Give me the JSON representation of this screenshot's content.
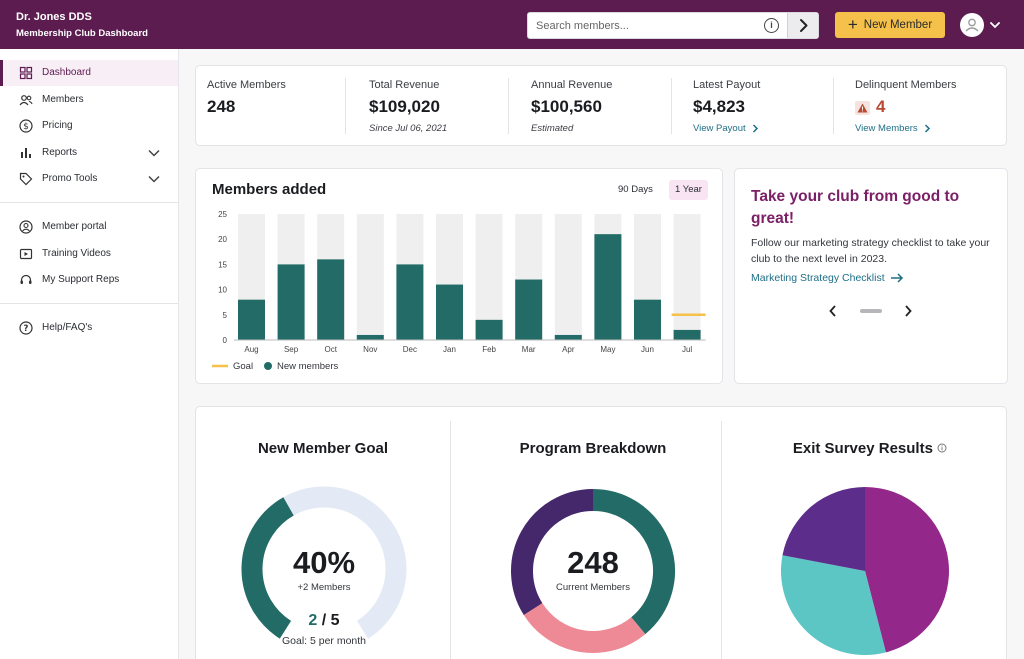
{
  "header": {
    "brand_name": "Dr. Jones DDS",
    "brand_subtitle": "Membership Club Dashboard",
    "search_placeholder": "Search members...",
    "new_member_label": "New Member",
    "icons": {
      "info": "info-icon",
      "go": "chevron-right-icon",
      "avatar": "user-avatar-icon",
      "menu": "chevron-down-icon"
    }
  },
  "sidebar": {
    "items": [
      {
        "label": "Dashboard",
        "icon": "dashboard-icon",
        "active": true
      },
      {
        "label": "Members",
        "icon": "users-icon"
      },
      {
        "label": "Pricing",
        "icon": "dollar-circle-icon"
      },
      {
        "label": "Reports",
        "icon": "bar-chart-icon",
        "expandable": true
      },
      {
        "label": "Promo Tools",
        "icon": "tag-icon",
        "expandable": true
      },
      {
        "label": "Member portal",
        "icon": "user-circle-icon"
      },
      {
        "label": "Training Videos",
        "icon": "video-icon"
      },
      {
        "label": "My Support Reps",
        "icon": "headset-icon"
      },
      {
        "label": "Help/FAQ's",
        "icon": "help-icon"
      }
    ]
  },
  "stats": {
    "active_members": {
      "label": "Active Members",
      "value": "248"
    },
    "total_revenue": {
      "label": "Total Revenue",
      "value": "$109,020",
      "sub": "Since Jul 06, 2021"
    },
    "annual_revenue": {
      "label": "Annual Revenue",
      "value": "$100,560",
      "sub": "Estimated"
    },
    "latest_payout": {
      "label": "Latest Payout",
      "value": "$4,823",
      "link": "View Payout"
    },
    "delinquent": {
      "label": "Delinquent Members",
      "value": "4",
      "link": "View Members"
    }
  },
  "members_chart": {
    "title": "Members added",
    "range_options": [
      "90 Days",
      "1 Year"
    ],
    "selected_range": "1 Year",
    "legend": {
      "goal": "Goal",
      "new_members": "New members"
    },
    "colors": {
      "bar": "#236b66",
      "goal": "#f5c14a",
      "background_bar": "#efefef"
    }
  },
  "chart_data": {
    "type": "bar",
    "categories": [
      "Aug",
      "Sep",
      "Oct",
      "Nov",
      "Dec",
      "Jan",
      "Feb",
      "Mar",
      "Apr",
      "May",
      "Jun",
      "Jul"
    ],
    "series": [
      {
        "name": "New members",
        "values": [
          8,
          15,
          16,
          1,
          15,
          11,
          4,
          12,
          1,
          21,
          8,
          2
        ]
      },
      {
        "name": "Goal",
        "values": [
          null,
          null,
          null,
          null,
          null,
          null,
          null,
          null,
          null,
          null,
          null,
          5
        ]
      }
    ],
    "ylim": [
      0,
      25
    ],
    "yticks": [
      0,
      5,
      10,
      15,
      20,
      25
    ],
    "grid": false,
    "legend_position": "bottom-left"
  },
  "promo": {
    "title": "Take your club from good to great!",
    "text": "Follow our marketing strategy checklist to take your club to the next level in 2023.",
    "link": "Marketing Strategy Checklist"
  },
  "goal_section": {
    "title": "New Member Goal",
    "percent": "40%",
    "percent_value": 0.4,
    "sub": "+2 Members",
    "progress_current": "2",
    "progress_total": "/ 5",
    "goal_text": "Goal: 5 per month",
    "colors": {
      "fill": "#236b66",
      "track": "#e4eaf5"
    }
  },
  "program_section": {
    "title": "Program Breakdown",
    "total": "248",
    "total_label": "Current Members",
    "segments": [
      {
        "fraction": 0.39,
        "color": "#236b66"
      },
      {
        "fraction": 0.27,
        "color": "#ee8a96"
      },
      {
        "fraction": 0.34,
        "color": "#44286b"
      }
    ]
  },
  "exit_section": {
    "title": "Exit Survey Results",
    "slices": [
      {
        "fraction": 0.46,
        "color": "#94288a"
      },
      {
        "fraction": 0.32,
        "color": "#5cc6c4"
      },
      {
        "fraction": 0.22,
        "color": "#5c2d8a"
      }
    ]
  }
}
